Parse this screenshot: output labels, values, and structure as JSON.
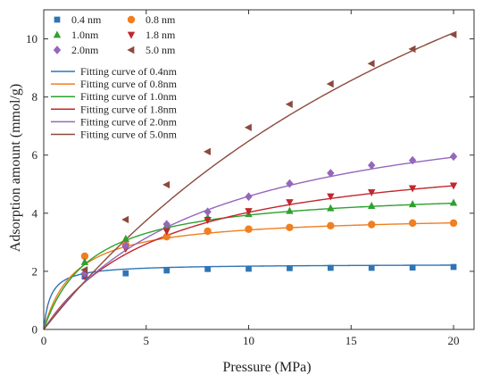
{
  "chart_data": {
    "type": "line",
    "title": "",
    "xlabel": "Pressure (MPa)",
    "ylabel": "Adsorption amount (mmol/g)",
    "xlim": [
      0,
      21
    ],
    "ylim": [
      0,
      11
    ],
    "xticks": [
      0,
      5,
      10,
      15,
      20
    ],
    "yticks": [
      0,
      2,
      4,
      6,
      8,
      10
    ],
    "grid": false,
    "legend_position": "top-left",
    "series": [
      {
        "name": "0.4 nm",
        "marker": "square",
        "color": "#2e75b6",
        "x": [
          2,
          4,
          6,
          8,
          10,
          12,
          14,
          16,
          18,
          20
        ],
        "y": [
          1.82,
          1.93,
          2.03,
          2.08,
          2.09,
          2.11,
          2.12,
          2.12,
          2.13,
          2.15
        ],
        "fit_name": "Fitting curve of 0.4nm",
        "fit": {
          "qmax": 2.25,
          "b": 3.0
        }
      },
      {
        "name": "0.8 nm",
        "marker": "circle",
        "color": "#f07f21",
        "x": [
          2,
          4,
          6,
          8,
          10,
          12,
          14,
          16,
          18,
          20
        ],
        "y": [
          2.52,
          2.92,
          3.19,
          3.38,
          3.45,
          3.51,
          3.57,
          3.61,
          3.66,
          3.66
        ],
        "fit_name": "Fitting curve of 0.8nm",
        "fit": {
          "qmax": 3.95,
          "b": 0.65
        }
      },
      {
        "name": "1.0nm",
        "marker": "triangle-up",
        "color": "#2ea12e",
        "x": [
          2,
          4,
          6,
          8,
          10,
          12,
          14,
          16,
          18,
          20
        ],
        "y": [
          2.32,
          3.12,
          3.58,
          3.85,
          3.97,
          4.08,
          4.17,
          4.25,
          4.31,
          4.36
        ],
        "fit_name": "Fitting curve of 1.0nm",
        "fit": {
          "qmax": 4.85,
          "b": 0.43
        }
      },
      {
        "name": "1.8 nm",
        "marker": "triangle-down",
        "color": "#c1272d",
        "x": [
          2,
          4,
          6,
          8,
          10,
          12,
          14,
          16,
          18,
          20
        ],
        "y": [
          1.83,
          2.78,
          3.38,
          3.77,
          4.07,
          4.38,
          4.58,
          4.72,
          4.86,
          4.95
        ],
        "fit_name": "Fitting curve of 1.8nm",
        "fit": {
          "qmax": 6.4,
          "b": 0.17
        }
      },
      {
        "name": "2.0nm",
        "marker": "diamond",
        "color": "#9467bd",
        "x": [
          2,
          4,
          6,
          8,
          10,
          12,
          14,
          16,
          18,
          20
        ],
        "y": [
          1.93,
          2.88,
          3.62,
          4.05,
          4.57,
          5.02,
          5.38,
          5.65,
          5.82,
          5.95
        ],
        "fit_name": "Fitting curve of 2.0nm",
        "fit": {
          "qmax": 8.4,
          "b": 0.12
        }
      },
      {
        "name": "5.0 nm",
        "marker": "triangle-left",
        "color": "#8c4a3c",
        "x": [
          2,
          4,
          6,
          8,
          10,
          12,
          14,
          16,
          18,
          20
        ],
        "y": [
          2.05,
          3.78,
          4.98,
          6.12,
          6.95,
          7.75,
          8.45,
          9.15,
          9.65,
          10.15
        ],
        "fit_name": "Fitting curve of 5.0nm",
        "fit": {
          "qmax": 24.0,
          "b": 0.037
        }
      }
    ]
  }
}
